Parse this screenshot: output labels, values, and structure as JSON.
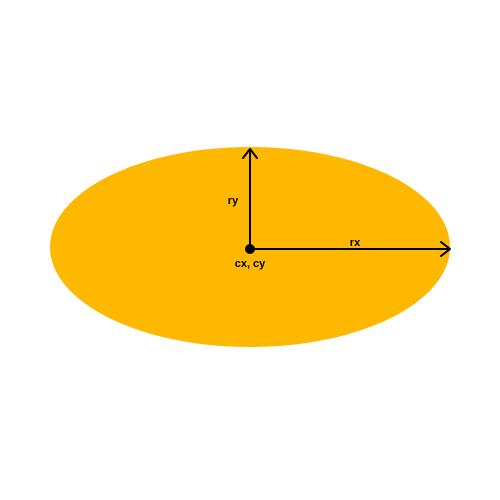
{
  "diagram": {
    "ellipse_color": "#FFB800",
    "stroke_color": "#000000",
    "background": "#FFFFFF",
    "labels": {
      "ry": "ry",
      "rx": "rx",
      "center": "cx, cy"
    }
  }
}
